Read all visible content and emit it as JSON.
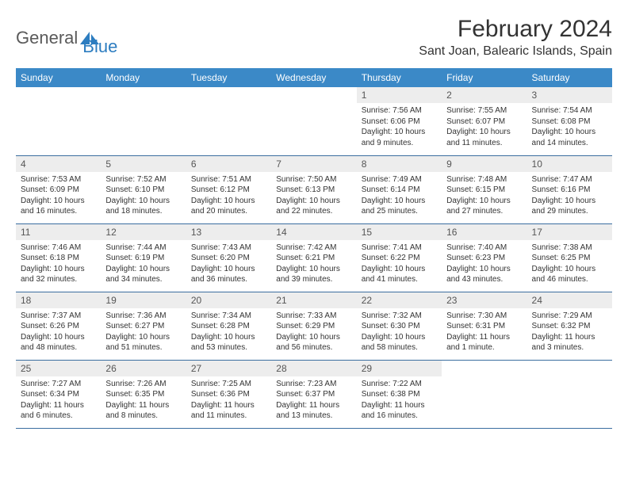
{
  "logo": {
    "part1": "General",
    "part2": "Blue"
  },
  "title": "February 2024",
  "location": "Sant Joan, Balearic Islands, Spain",
  "colors": {
    "header_bg": "#3b89c7",
    "header_text": "#ffffff",
    "daynum_bg": "#ededed",
    "row_border": "#3b6ea0",
    "logo_blue": "#2d7dc0",
    "logo_gray": "#5a5a5a"
  },
  "weekdays": [
    "Sunday",
    "Monday",
    "Tuesday",
    "Wednesday",
    "Thursday",
    "Friday",
    "Saturday"
  ],
  "weeks": [
    [
      {
        "empty": true
      },
      {
        "empty": true
      },
      {
        "empty": true
      },
      {
        "empty": true
      },
      {
        "n": "1",
        "sr": "Sunrise: 7:56 AM",
        "ss": "Sunset: 6:06 PM",
        "dl": "Daylight: 10 hours and 9 minutes."
      },
      {
        "n": "2",
        "sr": "Sunrise: 7:55 AM",
        "ss": "Sunset: 6:07 PM",
        "dl": "Daylight: 10 hours and 11 minutes."
      },
      {
        "n": "3",
        "sr": "Sunrise: 7:54 AM",
        "ss": "Sunset: 6:08 PM",
        "dl": "Daylight: 10 hours and 14 minutes."
      }
    ],
    [
      {
        "n": "4",
        "sr": "Sunrise: 7:53 AM",
        "ss": "Sunset: 6:09 PM",
        "dl": "Daylight: 10 hours and 16 minutes."
      },
      {
        "n": "5",
        "sr": "Sunrise: 7:52 AM",
        "ss": "Sunset: 6:10 PM",
        "dl": "Daylight: 10 hours and 18 minutes."
      },
      {
        "n": "6",
        "sr": "Sunrise: 7:51 AM",
        "ss": "Sunset: 6:12 PM",
        "dl": "Daylight: 10 hours and 20 minutes."
      },
      {
        "n": "7",
        "sr": "Sunrise: 7:50 AM",
        "ss": "Sunset: 6:13 PM",
        "dl": "Daylight: 10 hours and 22 minutes."
      },
      {
        "n": "8",
        "sr": "Sunrise: 7:49 AM",
        "ss": "Sunset: 6:14 PM",
        "dl": "Daylight: 10 hours and 25 minutes."
      },
      {
        "n": "9",
        "sr": "Sunrise: 7:48 AM",
        "ss": "Sunset: 6:15 PM",
        "dl": "Daylight: 10 hours and 27 minutes."
      },
      {
        "n": "10",
        "sr": "Sunrise: 7:47 AM",
        "ss": "Sunset: 6:16 PM",
        "dl": "Daylight: 10 hours and 29 minutes."
      }
    ],
    [
      {
        "n": "11",
        "sr": "Sunrise: 7:46 AM",
        "ss": "Sunset: 6:18 PM",
        "dl": "Daylight: 10 hours and 32 minutes."
      },
      {
        "n": "12",
        "sr": "Sunrise: 7:44 AM",
        "ss": "Sunset: 6:19 PM",
        "dl": "Daylight: 10 hours and 34 minutes."
      },
      {
        "n": "13",
        "sr": "Sunrise: 7:43 AM",
        "ss": "Sunset: 6:20 PM",
        "dl": "Daylight: 10 hours and 36 minutes."
      },
      {
        "n": "14",
        "sr": "Sunrise: 7:42 AM",
        "ss": "Sunset: 6:21 PM",
        "dl": "Daylight: 10 hours and 39 minutes."
      },
      {
        "n": "15",
        "sr": "Sunrise: 7:41 AM",
        "ss": "Sunset: 6:22 PM",
        "dl": "Daylight: 10 hours and 41 minutes."
      },
      {
        "n": "16",
        "sr": "Sunrise: 7:40 AM",
        "ss": "Sunset: 6:23 PM",
        "dl": "Daylight: 10 hours and 43 minutes."
      },
      {
        "n": "17",
        "sr": "Sunrise: 7:38 AM",
        "ss": "Sunset: 6:25 PM",
        "dl": "Daylight: 10 hours and 46 minutes."
      }
    ],
    [
      {
        "n": "18",
        "sr": "Sunrise: 7:37 AM",
        "ss": "Sunset: 6:26 PM",
        "dl": "Daylight: 10 hours and 48 minutes."
      },
      {
        "n": "19",
        "sr": "Sunrise: 7:36 AM",
        "ss": "Sunset: 6:27 PM",
        "dl": "Daylight: 10 hours and 51 minutes."
      },
      {
        "n": "20",
        "sr": "Sunrise: 7:34 AM",
        "ss": "Sunset: 6:28 PM",
        "dl": "Daylight: 10 hours and 53 minutes."
      },
      {
        "n": "21",
        "sr": "Sunrise: 7:33 AM",
        "ss": "Sunset: 6:29 PM",
        "dl": "Daylight: 10 hours and 56 minutes."
      },
      {
        "n": "22",
        "sr": "Sunrise: 7:32 AM",
        "ss": "Sunset: 6:30 PM",
        "dl": "Daylight: 10 hours and 58 minutes."
      },
      {
        "n": "23",
        "sr": "Sunrise: 7:30 AM",
        "ss": "Sunset: 6:31 PM",
        "dl": "Daylight: 11 hours and 1 minute."
      },
      {
        "n": "24",
        "sr": "Sunrise: 7:29 AM",
        "ss": "Sunset: 6:32 PM",
        "dl": "Daylight: 11 hours and 3 minutes."
      }
    ],
    [
      {
        "n": "25",
        "sr": "Sunrise: 7:27 AM",
        "ss": "Sunset: 6:34 PM",
        "dl": "Daylight: 11 hours and 6 minutes."
      },
      {
        "n": "26",
        "sr": "Sunrise: 7:26 AM",
        "ss": "Sunset: 6:35 PM",
        "dl": "Daylight: 11 hours and 8 minutes."
      },
      {
        "n": "27",
        "sr": "Sunrise: 7:25 AM",
        "ss": "Sunset: 6:36 PM",
        "dl": "Daylight: 11 hours and 11 minutes."
      },
      {
        "n": "28",
        "sr": "Sunrise: 7:23 AM",
        "ss": "Sunset: 6:37 PM",
        "dl": "Daylight: 11 hours and 13 minutes."
      },
      {
        "n": "29",
        "sr": "Sunrise: 7:22 AM",
        "ss": "Sunset: 6:38 PM",
        "dl": "Daylight: 11 hours and 16 minutes."
      },
      {
        "empty": true
      },
      {
        "empty": true
      }
    ]
  ]
}
